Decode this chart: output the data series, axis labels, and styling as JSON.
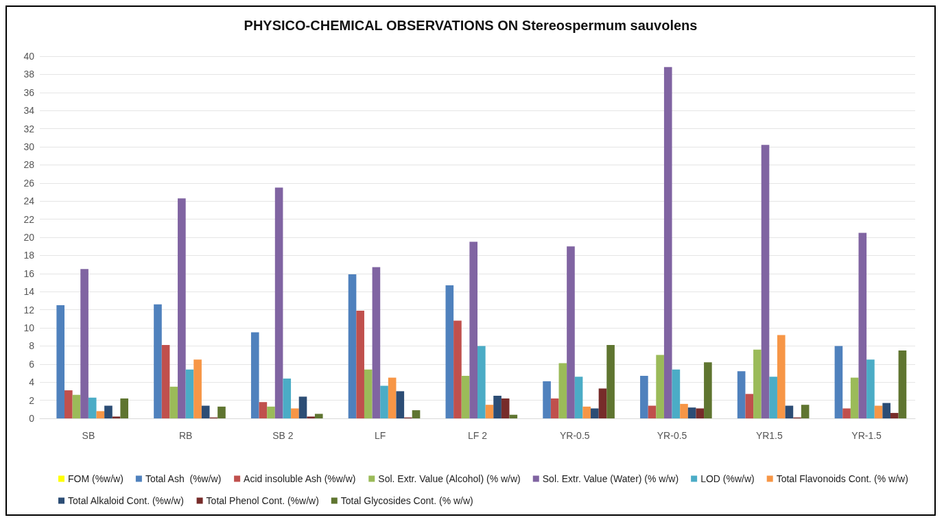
{
  "chart_data": {
    "type": "bar",
    "title": "PHYSICO-CHEMICAL OBSERVATIONS ON Stereospermum sauvolens",
    "categories": [
      "SB",
      "RB",
      "SB 2",
      "LF",
      "LF 2",
      "YR-0.5",
      "YR-0.5",
      "YR1.5",
      "YR-1.5"
    ],
    "series": [
      {
        "name": "FOM (%w/w)",
        "color": "#ffff00",
        "values": [
          0,
          0,
          0,
          0,
          0,
          0,
          0,
          0,
          0
        ]
      },
      {
        "name": "Total Ash  (%w/w)",
        "color": "#4f81bd",
        "values": [
          12.5,
          12.6,
          9.5,
          15.9,
          14.7,
          4.1,
          4.7,
          5.2,
          8.0
        ]
      },
      {
        "name": "Acid insoluble Ash (%w/w)",
        "color": "#c0504d",
        "values": [
          3.1,
          8.1,
          1.8,
          11.9,
          10.8,
          2.2,
          1.4,
          2.7,
          1.1
        ]
      },
      {
        "name": "Sol. Extr. Value (Alcohol) (% w/w)",
        "color": "#9bbb59",
        "values": [
          2.6,
          3.5,
          1.3,
          5.4,
          4.7,
          6.1,
          7.0,
          7.6,
          4.5
        ]
      },
      {
        "name": "Sol. Extr. Value (Water) (% w/w)",
        "color": "#8064a2",
        "values": [
          16.5,
          24.3,
          25.5,
          16.7,
          19.5,
          19.0,
          38.8,
          30.2,
          20.5
        ]
      },
      {
        "name": "LOD (%w/w)",
        "color": "#4bacc6",
        "values": [
          2.3,
          5.4,
          4.4,
          3.6,
          8.0,
          4.6,
          5.4,
          4.6,
          6.5
        ]
      },
      {
        "name": "Total Flavonoids Cont. (% w/w)",
        "color": "#f79646",
        "values": [
          0.8,
          6.5,
          1.1,
          4.5,
          1.5,
          1.3,
          1.6,
          9.2,
          1.4
        ]
      },
      {
        "name": "Total Alkaloid Cont. (%w/w)",
        "color": "#2c4d75",
        "values": [
          1.4,
          1.4,
          2.4,
          3.0,
          2.5,
          1.1,
          1.2,
          1.4,
          1.7
        ]
      },
      {
        "name": "Total Phenol Cont. (%w/w)",
        "color": "#772c2a",
        "values": [
          0.2,
          0.1,
          0.2,
          0.1,
          2.2,
          3.3,
          1.1,
          0.1,
          0.6
        ]
      },
      {
        "name": "Total Glycosides Cont. (% w/w)",
        "color": "#5f7530",
        "values": [
          2.2,
          1.3,
          0.5,
          0.9,
          0.4,
          8.1,
          6.2,
          1.5,
          7.5
        ]
      }
    ],
    "ylim": [
      0,
      40
    ],
    "yticks": [
      0,
      2,
      4,
      6,
      8,
      10,
      12,
      14,
      16,
      18,
      20,
      22,
      24,
      26,
      28,
      30,
      32,
      34,
      36,
      38,
      40
    ],
    "grid": "y",
    "legend": "bottom"
  }
}
